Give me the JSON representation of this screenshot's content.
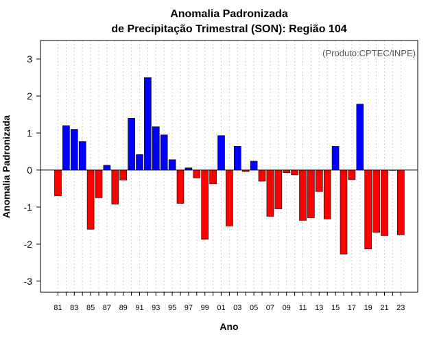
{
  "chart_data": {
    "type": "bar",
    "title_line1": "Anomalia Padronizada",
    "title_line2": "de Precipitação Trimestral (SON): Região 104",
    "xlabel": "Ano",
    "ylabel": "Anomalia Padronizada",
    "credit": "(Produto:CPTEC/INPE)",
    "ylim": [
      -3.3,
      3.5
    ],
    "yticks": [
      -3,
      -2,
      -1,
      0,
      1,
      2,
      3
    ],
    "ytick_labels": [
      "-3",
      "-2",
      "-1",
      "0",
      "1",
      "2",
      "3"
    ],
    "xtick_labels": [
      "81",
      "83",
      "85",
      "87",
      "89",
      "91",
      "93",
      "95",
      "97",
      "99",
      "01",
      "03",
      "05",
      "07",
      "09",
      "11",
      "13",
      "15",
      "17",
      "19",
      "21",
      "23"
    ],
    "grid": true,
    "colors": {
      "positive": "#0000ff",
      "negative": "#ff0000"
    },
    "categories": [
      "1981",
      "1982",
      "1983",
      "1984",
      "1985",
      "1986",
      "1987",
      "1988",
      "1989",
      "1990",
      "1991",
      "1992",
      "1993",
      "1994",
      "1995",
      "1996",
      "1997",
      "1998",
      "1999",
      "2000",
      "2001",
      "2002",
      "2003",
      "2004",
      "2005",
      "2006",
      "2007",
      "2008",
      "2009",
      "2010",
      "2011",
      "2012",
      "2013",
      "2014",
      "2015",
      "2016",
      "2017",
      "2018",
      "2019",
      "2020",
      "2021",
      "2022",
      "2023"
    ],
    "values": [
      -0.7,
      1.2,
      1.1,
      0.77,
      -1.6,
      -0.75,
      0.13,
      -0.92,
      -0.27,
      1.4,
      0.42,
      2.5,
      1.17,
      0.95,
      0.28,
      -0.9,
      0.06,
      -0.21,
      -1.87,
      -0.37,
      0.93,
      -1.51,
      0.64,
      -0.04,
      0.24,
      -0.3,
      -1.25,
      -1.05,
      -0.07,
      -0.13,
      -1.36,
      -1.29,
      -0.58,
      -1.32,
      0.64,
      -2.27,
      -0.26,
      1.78,
      -2.13,
      -1.68,
      -1.77,
      0.0,
      -1.75
    ]
  }
}
